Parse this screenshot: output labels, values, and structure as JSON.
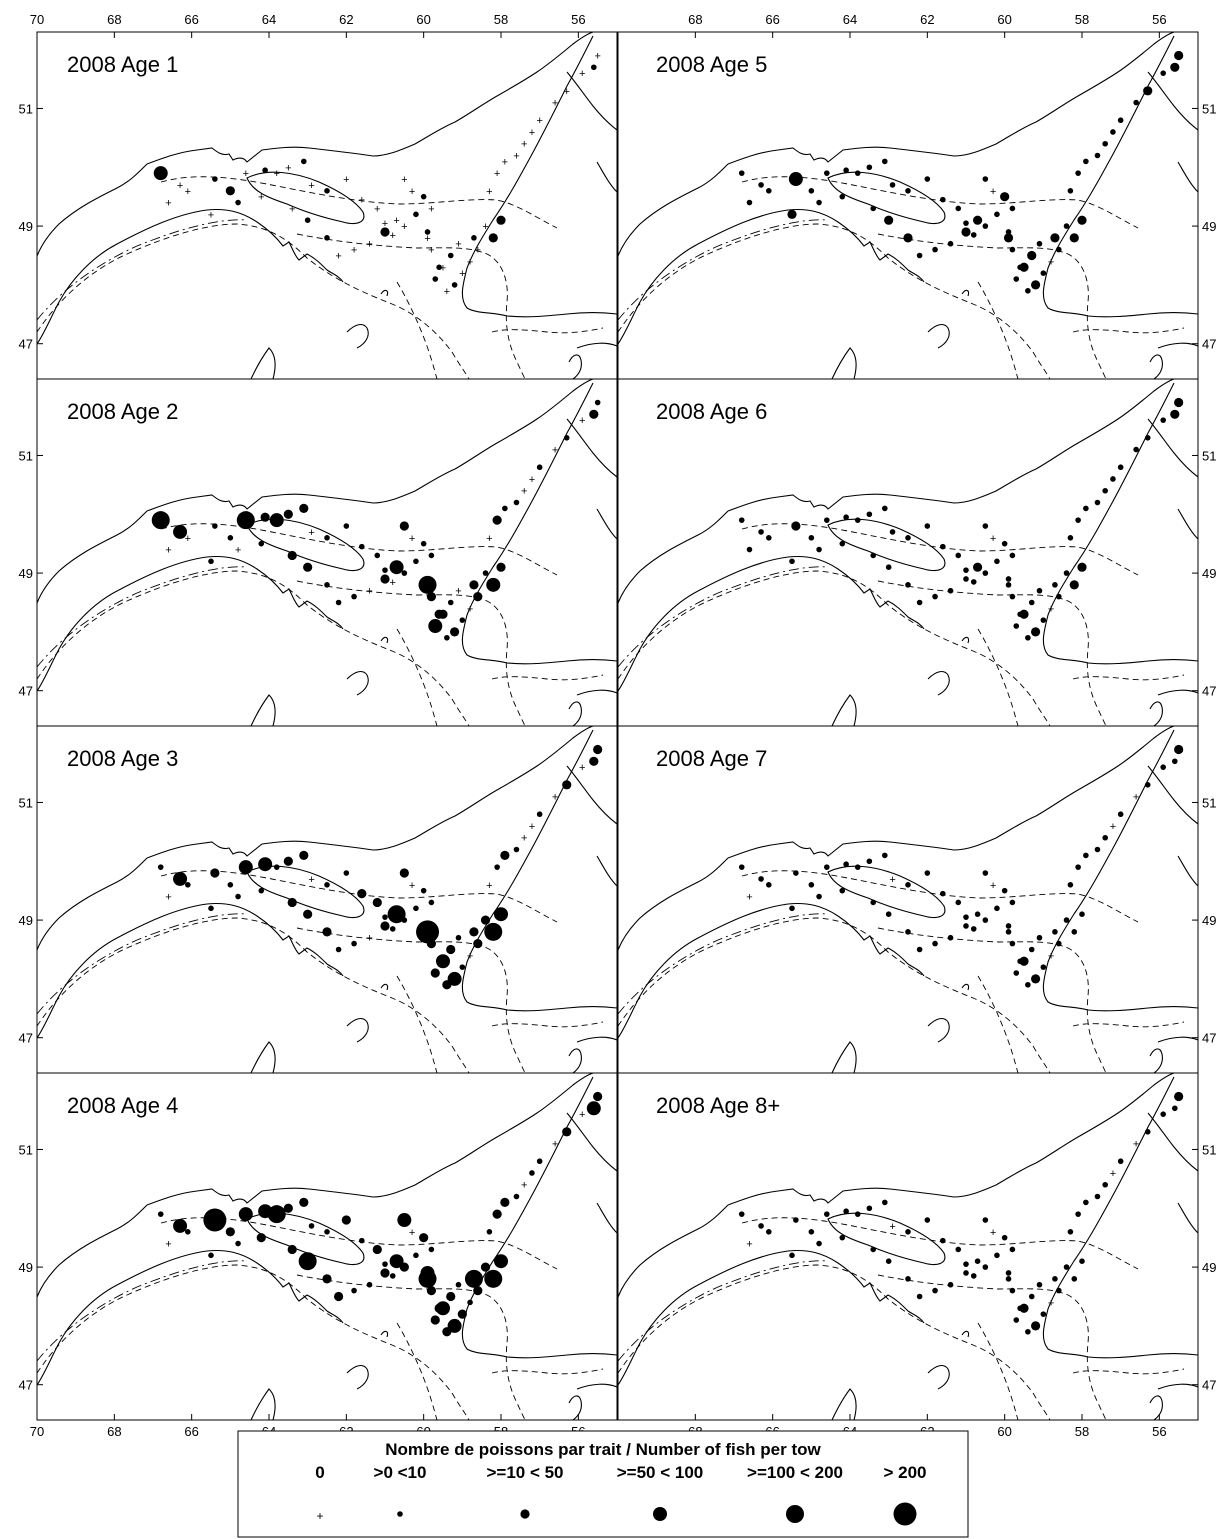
{
  "map_type": "bubble map (trawl survey stations)",
  "panels": [
    {
      "title": "2008 Age 1",
      "level": [
        3,
        0,
        0,
        1,
        2,
        0,
        1,
        0,
        0,
        1,
        0,
        1,
        0,
        0,
        0,
        0,
        0,
        0,
        0,
        1,
        0,
        2,
        0,
        0,
        0,
        1,
        0,
        1,
        0,
        1,
        0,
        0,
        0,
        0,
        0,
        0,
        0,
        0,
        0,
        0,
        1,
        0,
        2,
        0,
        1,
        0,
        1,
        0,
        1,
        0,
        1,
        0,
        0,
        2,
        0,
        0,
        0,
        1,
        1,
        0,
        0,
        1,
        0,
        0
      ]
    },
    {
      "title": "2008 Age 2",
      "level": [
        4,
        0,
        3,
        1,
        1,
        4,
        2,
        3,
        2,
        2,
        0,
        1,
        1,
        1,
        1,
        1,
        0,
        2,
        0,
        1,
        1,
        3,
        2,
        0,
        1,
        2,
        1,
        2,
        2,
        1,
        0,
        2,
        1,
        1,
        0,
        0,
        1,
        0,
        1,
        0,
        2,
        1,
        2,
        1,
        2,
        0,
        1,
        2,
        3,
        4,
        1,
        1,
        3,
        2,
        0,
        1,
        1,
        1,
        2,
        2,
        1,
        0,
        1,
        0
      ]
    },
    {
      "title": "2008 Age 3",
      "level": [
        1,
        0,
        3,
        2,
        1,
        3,
        3,
        1,
        2,
        2,
        0,
        1,
        1,
        2,
        2,
        1,
        1,
        2,
        0,
        1,
        1,
        4,
        2,
        0,
        1,
        3,
        2,
        1,
        2,
        2,
        0,
        1,
        2,
        1,
        0,
        0,
        1,
        0,
        2,
        0,
        2,
        2,
        3,
        2,
        2,
        1,
        2,
        3,
        2,
        5,
        1,
        1,
        4,
        2,
        0,
        1,
        1,
        2,
        2,
        2,
        1,
        1,
        1,
        1
      ]
    },
    {
      "title": "2008 Age 4",
      "level": [
        1,
        0,
        3,
        5,
        2,
        3,
        3,
        4,
        2,
        2,
        1,
        1,
        2,
        1,
        2,
        1,
        1,
        3,
        0,
        2,
        1,
        4,
        2,
        1,
        2,
        3,
        2,
        2,
        2,
        3,
        1,
        2,
        2,
        1,
        0,
        1,
        1,
        0,
        2,
        0,
        3,
        2,
        3,
        2,
        4,
        1,
        2,
        3,
        2,
        4,
        1,
        2,
        3,
        2,
        1,
        1,
        2,
        2,
        4,
        2,
        2,
        1,
        1,
        1
      ]
    },
    {
      "title": "2008 Age 5",
      "level": [
        1,
        1,
        1,
        3,
        1,
        1,
        1,
        1,
        1,
        1,
        1,
        1,
        1,
        1,
        1,
        1,
        1,
        1,
        0,
        2,
        1,
        2,
        1,
        0,
        1,
        2,
        1,
        1,
        1,
        1,
        1,
        1,
        1,
        1,
        1,
        1,
        1,
        1,
        2,
        1,
        2,
        2,
        2,
        1,
        2,
        1,
        2,
        2,
        1,
        2,
        1,
        1,
        2,
        2,
        1,
        1,
        1,
        2,
        2,
        1,
        1,
        1,
        2,
        1
      ]
    },
    {
      "title": "2008 Age 6",
      "level": [
        1,
        1,
        1,
        2,
        1,
        1,
        1,
        1,
        1,
        1,
        1,
        1,
        1,
        1,
        1,
        1,
        1,
        1,
        0,
        1,
        1,
        2,
        1,
        0,
        1,
        2,
        1,
        1,
        1,
        1,
        1,
        1,
        1,
        1,
        1,
        1,
        1,
        1,
        1,
        1,
        2,
        2,
        2,
        1,
        1,
        1,
        1,
        2,
        1,
        1,
        1,
        1,
        2,
        1,
        1,
        1,
        1,
        1,
        1,
        1,
        1,
        1,
        1,
        1
      ]
    },
    {
      "title": "2008 Age 7",
      "level": [
        1,
        0,
        1,
        1,
        1,
        1,
        1,
        1,
        1,
        1,
        0,
        1,
        1,
        1,
        1,
        1,
        1,
        1,
        0,
        1,
        1,
        1,
        1,
        0,
        1,
        2,
        1,
        1,
        1,
        1,
        1,
        1,
        1,
        1,
        1,
        0,
        1,
        0,
        1,
        1,
        1,
        2,
        1,
        1,
        1,
        1,
        1,
        2,
        1,
        1,
        1,
        1,
        1,
        1,
        1,
        1,
        1,
        1,
        1,
        1,
        1,
        1,
        1,
        1
      ]
    },
    {
      "title": "2008 Age 8+",
      "level": [
        1,
        0,
        1,
        1,
        1,
        1,
        1,
        1,
        1,
        1,
        0,
        1,
        1,
        1,
        1,
        1,
        1,
        1,
        0,
        1,
        1,
        1,
        1,
        0,
        1,
        2,
        1,
        1,
        1,
        1,
        1,
        1,
        1,
        1,
        1,
        0,
        1,
        0,
        1,
        1,
        1,
        2,
        1,
        1,
        1,
        1,
        1,
        2,
        1,
        1,
        1,
        1,
        1,
        1,
        1,
        1,
        1,
        1,
        1,
        1,
        1,
        1,
        1,
        1
      ]
    }
  ],
  "stations": {
    "lon": [
      66.8,
      66.6,
      66.3,
      65.4,
      65.0,
      64.6,
      64.1,
      63.8,
      63.5,
      63.1,
      62.9,
      62.5,
      62.0,
      61.6,
      61.2,
      61.0,
      60.8,
      60.5,
      60.3,
      60.0,
      59.8,
      58.2,
      58.6,
      58.8,
      59.0,
      59.2,
      59.4,
      59.6,
      59.8,
      59.9,
      58.3,
      58.1,
      57.9,
      57.6,
      57.4,
      57.2,
      57.0,
      56.6,
      56.3,
      55.9,
      55.6,
      55.5,
      58.0,
      58.4,
      58.7,
      59.1,
      59.3,
      59.5,
      59.7,
      59.9,
      60.2,
      60.5,
      60.7,
      61.0,
      61.4,
      61.8,
      62.2,
      62.5,
      63.0,
      63.4,
      64.2,
      64.8,
      65.5,
      66.1
    ],
    "lat": [
      49.9,
      49.4,
      49.7,
      49.8,
      49.6,
      49.9,
      49.95,
      49.9,
      50.0,
      50.1,
      49.7,
      49.6,
      49.8,
      49.45,
      49.3,
      49.05,
      48.85,
      49.8,
      49.6,
      49.5,
      49.3,
      48.8,
      48.6,
      48.4,
      48.2,
      48.0,
      47.9,
      48.3,
      48.6,
      48.9,
      49.6,
      49.9,
      50.1,
      50.2,
      50.4,
      50.6,
      50.8,
      51.1,
      51.3,
      51.6,
      51.7,
      51.9,
      49.1,
      49.0,
      48.8,
      48.7,
      48.5,
      48.3,
      48.1,
      48.8,
      49.2,
      49.0,
      49.1,
      48.9,
      48.7,
      48.6,
      48.5,
      48.8,
      49.1,
      49.3,
      49.5,
      49.4,
      49.2,
      49.6
    ]
  },
  "axes": {
    "lon_ticks": [
      "70",
      "68",
      "66",
      "64",
      "62",
      "60",
      "58",
      "56"
    ],
    "lat_ticks": [
      "51",
      "49",
      "47"
    ],
    "lon_range": [
      70,
      55
    ],
    "lat_range": [
      46.4,
      52.3
    ]
  },
  "legend": {
    "title": "Nombre de poissons par trait / Number of fish per tow",
    "categories": [
      "0",
      ">0 <10",
      ">=10 < 50",
      ">=50 < 100",
      ">=100 < 200",
      "> 200"
    ]
  },
  "colors": {
    "ink": "#000000",
    "background": "#ffffff"
  }
}
